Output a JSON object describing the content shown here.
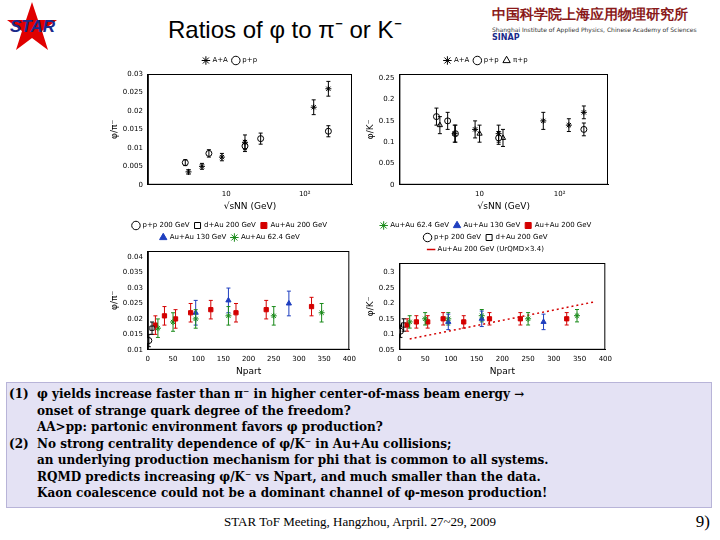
{
  "header": {
    "logo_text": "STAR",
    "title": "Ratios of φ to π⁻ or K⁻",
    "institute": "中国科学院上海应用物理研究所",
    "institute_en": "Shanghai Institute of Applied Physics, Chinese Academy of Sciences",
    "institute_abbr": "SINAP"
  },
  "chart_data": [
    {
      "type": "scatter",
      "x_label": "√sNN (GeV)",
      "y_label": "φ/π⁻",
      "log": "x",
      "grid": false,
      "legend": "top",
      "xlim": [
        1,
        400
      ],
      "xticks": [
        10,
        {
          "value": 100,
          "label": "10²"
        }
      ],
      "ylim": [
        0,
        0.03
      ],
      "yticks": [
        0,
        0.005,
        0.01,
        0.015,
        0.02,
        0.025,
        0.03
      ],
      "series": [
        {
          "name": "A+A",
          "color": "#000000",
          "marker": "star",
          "x": [
            3.3,
            4.9,
            8.8,
            17.3,
            130,
            200
          ],
          "values": [
            0.0035,
            0.005,
            0.0075,
            0.0115,
            0.021,
            0.026
          ],
          "errors": [
            0.0006,
            0.0008,
            0.001,
            0.002,
            0.002,
            0.002
          ]
        },
        {
          "name": "p+p",
          "color": "#000000",
          "marker": "circle-open",
          "x": [
            3.0,
            6.0,
            17.3,
            27.4,
            200
          ],
          "values": [
            0.006,
            0.0085,
            0.0105,
            0.0125,
            0.0145
          ],
          "errors": [
            0.0008,
            0.001,
            0.0015,
            0.0015,
            0.0015
          ]
        }
      ]
    },
    {
      "type": "scatter",
      "x_label": "√sNN (GeV)",
      "y_label": "φ/K⁻",
      "log": "x",
      "grid": false,
      "legend": "top",
      "xlim": [
        1,
        400
      ],
      "xticks": [
        10,
        {
          "value": 100,
          "label": "10²"
        }
      ],
      "ylim": [
        0,
        0.26
      ],
      "yticks": [
        0,
        0.05,
        0.1,
        0.15,
        0.2,
        0.25
      ],
      "series": [
        {
          "name": "A+A",
          "color": "#000000",
          "marker": "star",
          "x": [
            4.9,
            8.8,
            17.3,
            62.4,
            130,
            200
          ],
          "values": [
            0.12,
            0.13,
            0.12,
            0.15,
            0.14,
            0.17
          ],
          "errors": [
            0.02,
            0.02,
            0.02,
            0.02,
            0.015,
            0.015
          ]
        },
        {
          "name": "p+p",
          "color": "#000000",
          "marker": "circle-open",
          "x": [
            2.9,
            4.0,
            5.0,
            17.3,
            200
          ],
          "values": [
            0.16,
            0.15,
            0.12,
            0.11,
            0.13
          ],
          "errors": [
            0.02,
            0.02,
            0.02,
            0.015,
            0.015
          ]
        },
        {
          "name": "π+p",
          "color": "#000000",
          "marker": "triangle-open",
          "x": [
            3.2,
            10,
            19.6
          ],
          "values": [
            0.14,
            0.12,
            0.11
          ],
          "errors": [
            0.02,
            0.02,
            0.02
          ]
        }
      ]
    },
    {
      "type": "scatter",
      "x_label": "Npart",
      "y_label": "φ/π⁻",
      "grid": false,
      "legend": "top",
      "xlim": [
        0,
        400
      ],
      "xticks": [
        0,
        50,
        100,
        150,
        200,
        250,
        300,
        350,
        400
      ],
      "ylim": [
        0.01,
        0.042
      ],
      "yticks": [
        0.01,
        0.015,
        0.02,
        0.025,
        0.03,
        0.035,
        0.04
      ],
      "series": [
        {
          "name": "p+p 200 GeV",
          "color": "#000000",
          "marker": "circle-open",
          "x": [
            2
          ],
          "values": [
            0.013
          ],
          "errors": [
            0.002
          ]
        },
        {
          "name": "d+Au 200 GeV",
          "color": "#000000",
          "marker": "square-open",
          "x": [
            8.3
          ],
          "values": [
            0.017
          ],
          "errors": [
            0.002
          ]
        },
        {
          "name": "Au+Au 200 GeV",
          "color": "#d40000",
          "marker": "square",
          "x": [
            15,
            33,
            55,
            85,
            125,
            175,
            235,
            325
          ],
          "values": [
            0.018,
            0.021,
            0.02,
            0.022,
            0.023,
            0.022,
            0.023,
            0.024
          ],
          "errors": [
            0.003,
            0.003,
            0.003,
            0.003,
            0.003,
            0.003,
            0.003,
            0.003
          ]
        },
        {
          "name": "Au+Au 130 GeV",
          "color": "#1f3fbf",
          "marker": "triangle",
          "x": [
            95,
            160,
            280
          ],
          "values": [
            0.022,
            0.026,
            0.025
          ],
          "errors": [
            0.004,
            0.004,
            0.004
          ]
        },
        {
          "name": "Au+Au 62.4 GeV",
          "color": "#1a8a1a",
          "marker": "star",
          "x": [
            20,
            50,
            95,
            160,
            250,
            345
          ],
          "values": [
            0.017,
            0.019,
            0.02,
            0.021,
            0.021,
            0.022
          ],
          "errors": [
            0.003,
            0.003,
            0.003,
            0.003,
            0.003,
            0.003
          ]
        }
      ]
    },
    {
      "type": "scatter",
      "x_label": "Npart",
      "y_label": "φ/K⁻",
      "grid": false,
      "legend": "top",
      "xlim": [
        0,
        400
      ],
      "xticks": [
        0,
        50,
        100,
        150,
        200,
        250,
        300,
        350,
        400
      ],
      "ylim": [
        0.05,
        0.33
      ],
      "yticks": [
        0.05,
        0.1,
        0.15,
        0.2,
        0.25,
        0.3
      ],
      "series": [
        {
          "name": "Au+Au 62.4 GeV",
          "color": "#1a8a1a",
          "marker": "star",
          "x": [
            20,
            50,
            95,
            160,
            250,
            345
          ],
          "values": [
            0.14,
            0.15,
            0.15,
            0.16,
            0.15,
            0.16
          ],
          "errors": [
            0.02,
            0.02,
            0.02,
            0.02,
            0.02,
            0.02
          ]
        },
        {
          "name": "Au+Au 130 GeV",
          "color": "#1f3fbf",
          "marker": "triangle",
          "x": [
            95,
            160,
            280
          ],
          "values": [
            0.14,
            0.15,
            0.14
          ],
          "errors": [
            0.025,
            0.025,
            0.025
          ]
        },
        {
          "name": "Au+Au 200 GeV",
          "color": "#d40000",
          "marker": "square",
          "x": [
            15,
            33,
            55,
            85,
            125,
            175,
            235,
            325
          ],
          "values": [
            0.13,
            0.14,
            0.14,
            0.15,
            0.14,
            0.15,
            0.15,
            0.15
          ],
          "errors": [
            0.02,
            0.02,
            0.02,
            0.02,
            0.02,
            0.02,
            0.02,
            0.02
          ]
        },
        {
          "name": "p+p 200 GeV",
          "color": "#000000",
          "marker": "circle-open",
          "x": [
            2
          ],
          "values": [
            0.11
          ],
          "errors": [
            0.02
          ]
        },
        {
          "name": "d+Au 200 GeV",
          "color": "#000000",
          "marker": "square-open",
          "x": [
            8.3
          ],
          "values": [
            0.13
          ],
          "errors": [
            0.02
          ]
        },
        {
          "name": "Au+Au 200 GeV (UrQMD×3.4)",
          "color": "#d40000",
          "type": "line",
          "line_style": "dotted",
          "x": [
            20,
            380
          ],
          "values": [
            0.085,
            0.205
          ]
        }
      ]
    }
  ],
  "bullets": [
    {
      "label": "(1)",
      "lines": [
        "φ yields increase faster than π⁻ in higher center-of-mass beam energy →",
        "onset of strange quark degree of the freedom?",
        "AA>pp: partonic environment favors φ production?"
      ]
    },
    {
      "label": "(2)",
      "lines": [
        "No strong centrality dependence of φ/K⁻ in Au+Au collisions;",
        "an underlying production mechanism for phi that is common to all systems.",
        "RQMD predicts increasing φ/K⁻ vs Npart, and much smaller than the data.",
        "Kaon coalescence could not be a dominant channel of φ-meson production!"
      ]
    }
  ],
  "footer": "STAR ToF Meeting, Hangzhou, Arpril. 27~29, 2009",
  "page": "9)"
}
